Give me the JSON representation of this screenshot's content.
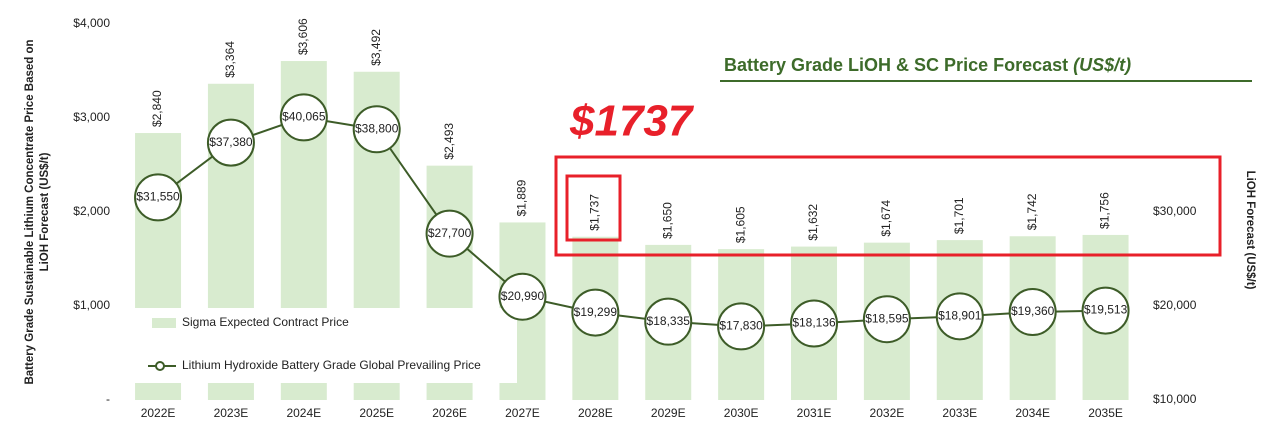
{
  "chart_data": {
    "type": "bar-line",
    "title": "Battery Grade LiOH & SC Price Forecast",
    "title_unit": "(US$/t)",
    "annotation": "$1737",
    "y_label": [
      "Battery Grade Sustainable Lithium Concentrate Price Based on",
      "LiOH Forecast (US$/t)"
    ],
    "y2_label": "LiOH Forecast (US$/t)",
    "categories": [
      "2022E",
      "2023E",
      "2024E",
      "2025E",
      "2026E",
      "2027E",
      "2028E",
      "2029E",
      "2030E",
      "2031E",
      "2032E",
      "2033E",
      "2034E",
      "2035E"
    ],
    "series": [
      {
        "name": "Sigma Expected Contract Price",
        "type": "bar",
        "color": "#d8ebcf",
        "values": [
          2840,
          3364,
          3606,
          3492,
          2493,
          1889,
          1737,
          1650,
          1605,
          1632,
          1674,
          1701,
          1742,
          1756
        ],
        "value_labels": [
          "$2,840",
          "$3,364",
          "$3,606",
          "$3,492",
          "$2,493",
          "$1,889",
          "$1,737",
          "$1,650",
          "$1,605",
          "$1,632",
          "$1,674",
          "$1,701",
          "$1,742",
          "$1,756"
        ]
      },
      {
        "name": "Lithium Hydroxide Battery Grade Global Prevailing Price",
        "type": "line",
        "color": "#3d5c28",
        "axis": "y2",
        "values": [
          31550,
          37380,
          40065,
          38800,
          27700,
          20990,
          19299,
          18335,
          17830,
          18136,
          18595,
          18901,
          19360,
          19513
        ],
        "value_labels": [
          "$31,550",
          "$37,380",
          "$40,065",
          "$38,800",
          "$27,700",
          "$20,990",
          "$19,299",
          "$18,335",
          "$17,830",
          "$18,136",
          "$18,595",
          "$18,901",
          "$19,360",
          "$19,513"
        ]
      }
    ],
    "ylim": [
      0,
      4000
    ],
    "yticks": [
      {
        "value": 0,
        "label": "-"
      },
      {
        "value": 1000,
        "label": "$1,000"
      },
      {
        "value": 2000,
        "label": "$2,000"
      },
      {
        "value": 3000,
        "label": "$3,000"
      },
      {
        "value": 4000,
        "label": "$4,000"
      }
    ],
    "y2lim": [
      10000,
      50000
    ],
    "y2ticks": [
      {
        "value": 10000,
        "label": "$10,000"
      },
      {
        "value": 20000,
        "label": "$20,000"
      },
      {
        "value": 30000,
        "label": "$30,000"
      }
    ],
    "legend": "bottom-left"
  }
}
